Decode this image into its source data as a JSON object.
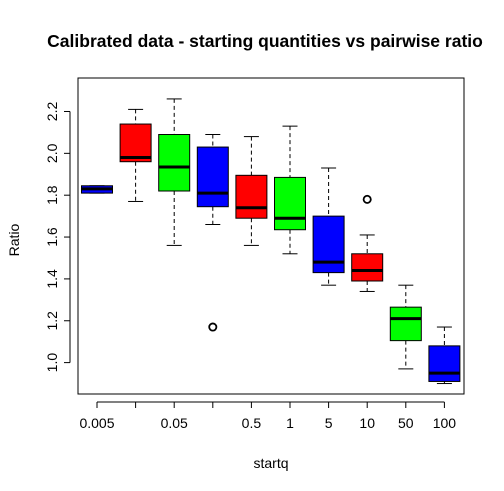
{
  "chart_data": {
    "type": "box",
    "title": "Calibrated data - starting quantities vs pairwise ratio",
    "xlabel": "startq",
    "ylabel": "Ratio",
    "ylim": [
      0.85,
      2.36
    ],
    "yticks": [
      "1.0",
      "1.2",
      "1.4",
      "1.6",
      "1.8",
      "2.0",
      "2.2"
    ],
    "xtick_labels": [
      "0.005",
      "",
      "0.05",
      "",
      "0.5",
      "1",
      "5",
      "10",
      "50",
      "100"
    ],
    "grid": false,
    "boxes": [
      {
        "color": "#0000ff",
        "min": 1.81,
        "q1": 1.81,
        "median": 1.83,
        "q3": 1.845,
        "max": 1.845,
        "outliers": []
      },
      {
        "color": "#ff0000",
        "min": 1.77,
        "q1": 1.96,
        "median": 1.98,
        "q3": 2.14,
        "max": 2.21,
        "outliers": []
      },
      {
        "color": "#00ff00",
        "min": 1.56,
        "q1": 1.82,
        "median": 1.935,
        "q3": 2.09,
        "max": 2.26,
        "outliers": []
      },
      {
        "color": "#0000ff",
        "min": 1.66,
        "q1": 1.745,
        "median": 1.81,
        "q3": 2.03,
        "max": 2.09,
        "outliers": [
          1.17
        ]
      },
      {
        "color": "#ff0000",
        "min": 1.56,
        "q1": 1.69,
        "median": 1.74,
        "q3": 1.895,
        "max": 2.08,
        "outliers": []
      },
      {
        "color": "#00ff00",
        "min": 1.52,
        "q1": 1.635,
        "median": 1.69,
        "q3": 1.885,
        "max": 2.13,
        "outliers": []
      },
      {
        "color": "#0000ff",
        "min": 1.37,
        "q1": 1.43,
        "median": 1.48,
        "q3": 1.7,
        "max": 1.93,
        "outliers": []
      },
      {
        "color": "#ff0000",
        "min": 1.34,
        "q1": 1.39,
        "median": 1.44,
        "q3": 1.52,
        "max": 1.61,
        "outliers": [
          1.78
        ]
      },
      {
        "color": "#00ff00",
        "min": 0.97,
        "q1": 1.105,
        "median": 1.21,
        "q3": 1.265,
        "max": 1.37,
        "outliers": []
      },
      {
        "color": "#0000ff",
        "min": 0.9,
        "q1": 0.91,
        "median": 0.95,
        "q3": 1.08,
        "max": 1.17,
        "outliers": []
      }
    ]
  }
}
